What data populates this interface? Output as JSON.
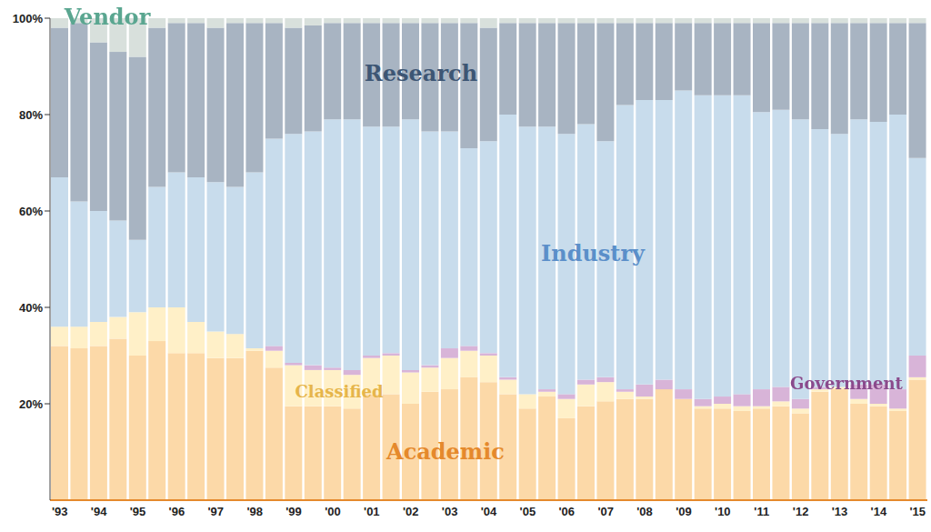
{
  "chart_data": {
    "type": "bar",
    "stacked": true,
    "grid": false,
    "categories": [
      "'93",
      null,
      "'94",
      null,
      "'95",
      null,
      "'96",
      null,
      "'97",
      null,
      "'98",
      null,
      "'99",
      null,
      "'00",
      null,
      "'01",
      null,
      "'02",
      null,
      "'03",
      null,
      "'04",
      null,
      "'05",
      null,
      "'06",
      null,
      "'07",
      null,
      "'08",
      null,
      "'09",
      null,
      "'10",
      null,
      "'11",
      null,
      "'12",
      null,
      "'13",
      null,
      "'14",
      null,
      "'15"
    ],
    "ylim": [
      0,
      100
    ],
    "yticks": [
      {
        "value": 20,
        "label": "20%"
      },
      {
        "value": 40,
        "label": "40%"
      },
      {
        "value": 60,
        "label": "60%"
      },
      {
        "value": 80,
        "label": "80%"
      },
      {
        "value": 100,
        "label": "100%"
      }
    ],
    "series": [
      {
        "name": "Academic",
        "color": "#fcd9a8",
        "values": [
          32,
          31.5,
          32,
          33.5,
          30,
          33,
          30.5,
          30.5,
          29.5,
          29.5,
          31,
          27.5,
          19.5,
          19.5,
          19.5,
          19,
          22,
          22,
          20,
          22.5,
          23,
          25.5,
          24.5,
          22,
          19,
          21.5,
          17,
          19.5,
          20.5,
          21,
          21,
          23,
          21,
          19,
          19,
          18.5,
          19,
          19.5,
          18,
          22.5,
          23,
          20,
          19.5,
          18.5,
          25
        ]
      },
      {
        "name": "Classified",
        "color": "#fff0c8",
        "values": [
          4,
          4.5,
          5,
          4.5,
          9,
          7,
          9.5,
          6.5,
          5.5,
          5,
          0.5,
          3.5,
          8.5,
          7.5,
          7.5,
          7,
          7.5,
          8,
          6.5,
          5,
          6.5,
          5.5,
          5.5,
          3,
          3,
          1,
          4,
          4.5,
          4,
          1.5,
          0.5,
          0,
          0,
          0.5,
          1,
          1,
          0.5,
          1,
          1,
          0.5,
          0.5,
          1,
          0.5,
          0.5,
          0.5
        ]
      },
      {
        "name": "Government",
        "color": "#d8b4d8",
        "values": [
          0,
          0,
          0,
          0,
          0,
          0,
          0,
          0,
          0,
          0,
          0,
          1,
          0.5,
          1,
          0.5,
          1,
          0.5,
          0.5,
          0.5,
          0.5,
          2,
          1,
          0.5,
          0.5,
          0,
          0.5,
          1,
          1,
          1,
          0.5,
          2.5,
          2,
          2,
          1.5,
          1.5,
          2.5,
          3.5,
          3,
          2,
          0.5,
          0,
          3,
          4,
          4,
          4.5
        ]
      },
      {
        "name": "Industry",
        "color": "#c8dcec",
        "values": [
          31,
          26,
          23,
          20,
          15,
          25,
          28,
          30,
          31,
          30.5,
          36.5,
          43,
          47.5,
          48.5,
          51.5,
          52,
          47.5,
          47,
          52,
          48.5,
          45,
          41,
          44,
          54.5,
          55.5,
          54.5,
          54,
          53,
          49,
          59,
          59,
          58,
          62,
          63,
          62.5,
          62,
          57.5,
          57.5,
          58,
          53.5,
          52.5,
          55,
          54.5,
          57,
          41
        ]
      },
      {
        "name": "Research",
        "color": "#a8b4c2",
        "values": [
          31,
          37,
          35,
          35,
          38,
          33,
          31,
          32,
          32,
          34,
          31,
          24,
          22,
          22,
          20,
          20,
          21.5,
          21.5,
          20,
          22.5,
          22.5,
          26,
          23.5,
          19,
          21.5,
          21.5,
          23,
          21,
          24.5,
          17,
          16,
          16,
          14,
          15,
          15,
          15,
          18.5,
          18,
          20,
          22,
          23,
          20,
          20.5,
          19,
          28
        ]
      },
      {
        "name": "Vendor",
        "color": "#d8e0dc",
        "values": [
          2,
          1,
          5,
          7,
          8,
          2,
          1,
          1,
          2,
          1,
          1,
          1,
          2,
          1.5,
          1,
          1,
          1,
          1,
          1,
          1,
          1,
          1,
          2,
          1,
          1,
          1,
          1,
          1,
          1,
          1,
          1,
          1,
          1,
          1,
          1,
          1,
          1,
          1,
          1,
          1,
          1,
          1,
          1,
          1,
          1
        ]
      }
    ]
  }
}
